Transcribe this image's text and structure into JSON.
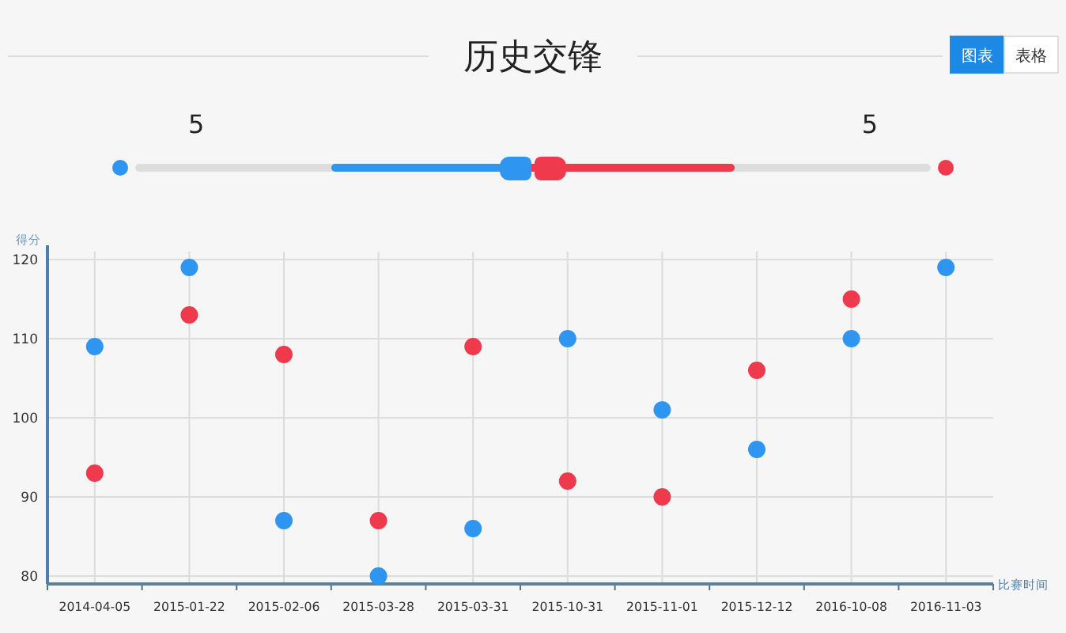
{
  "chart_data": [
    {
      "type": "other",
      "title": "历史交锋",
      "annotations": [
        "图表",
        "表格",
        "5",
        "5"
      ]
    },
    {
      "type": "scatter",
      "ylabel": "得分",
      "xlabel": "比赛时间",
      "categories": [
        "2014-04-05",
        "2015-01-22",
        "2015-02-06",
        "2015-03-28",
        "2015-03-31",
        "2015-10-31",
        "2015-11-01",
        "2015-12-12",
        "2016-10-08",
        "2016-11-03"
      ],
      "series": [
        {
          "color": "#2e95f0",
          "values": [
            109,
            119,
            87,
            80,
            86,
            110,
            101,
            96,
            110,
            119
          ]
        },
        {
          "color": "#ee3a4c",
          "values": [
            93,
            113,
            108,
            87,
            109,
            92,
            90,
            106,
            115,
            null
          ]
        }
      ],
      "ylim": [
        79,
        121
      ],
      "yticks": [
        80,
        90,
        100,
        110,
        120
      ],
      "grid": true,
      "marker": "circle"
    }
  ]
}
